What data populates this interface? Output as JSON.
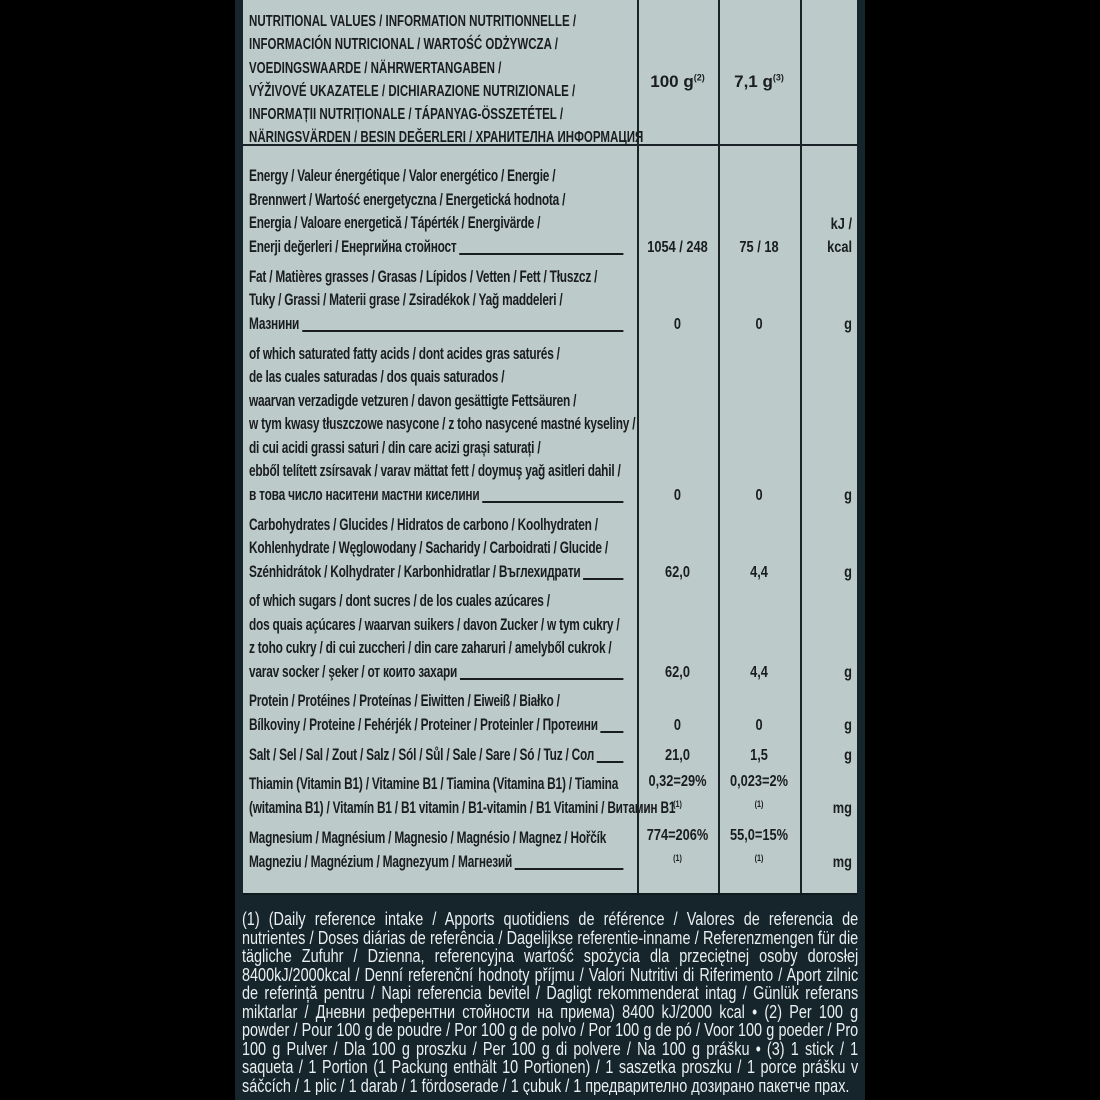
{
  "colors": {
    "table_bg": "#bccaca",
    "panel_bg": "#16252c",
    "page_bg": "#000000",
    "text_dark": "#1a1d1e",
    "text_light": "#e9eff1"
  },
  "header": {
    "title_lines": [
      "NUTRITIONAL VALUES / INFORMATION NUTRITIONNELLE /",
      "INFORMACIÓN NUTRICIONAL / WARTOŚĆ ODŻYWCZA /",
      "VOEDINGSWAARDE / NÄHRWERTANGABEN /",
      "VÝŽIVOVÉ UKAZATELE / DICHIARAZIONE NUTRIZIONALE /",
      "INFORMAȚII NUTRIȚIONALE / TÁPANYAG-ÖSSZETÉTEL /",
      "NÄRINGSVÄRDEN / BESIN DEĞERLERI / ХРАНИТЕЛНА ИНФОРМАЦИЯ"
    ],
    "col1": "100 g",
    "col1_note": "(2)",
    "col2": "7,1 g",
    "col2_note": "(3)"
  },
  "rows": [
    {
      "lines": [
        "Energy / Valeur énergétique / Valor energético / Energie /",
        "Brennwert / Wartość energetyczna / Energetická hodnota /",
        "Energia / Valoare energetică / Tápérték / Energivärde /",
        "Enerji değerleri / Енергийна стойност"
      ],
      "v1": "1054 / 248",
      "v2": "75 / 18",
      "unit": "kJ / kcal"
    },
    {
      "lines": [
        "Fat / Matières grasses / Grasas / Lípidos / Vetten / Fett / Tłuszcz /",
        "Tuky / Grassi / Materii grase / Zsiradékok / Yağ maddeleri /",
        "Мазнини"
      ],
      "v1": "0",
      "v2": "0",
      "unit": "g"
    },
    {
      "lines": [
        "of which saturated fatty acids / dont acides gras saturés /",
        "de las cuales saturadas / dos quais saturados /",
        "waarvan verzadigde vetzuren / davon gesättigte Fettsäuren /",
        "w tym kwasy tłuszczowe nasycone / z toho nasycené mastné kyseliny /",
        "di cui acidi grassi saturi / din care acizi grași saturați /",
        "ebből telített zsírsavak / varav mättat fett / doymuş yağ asitleri dahil /",
        "в това число наситени мастни киселини"
      ],
      "v1": "0",
      "v2": "0",
      "unit": "g"
    },
    {
      "lines": [
        "Carbohydrates / Glucides / Hidratos de carbono / Koolhydraten /",
        "Kohlenhydrate / Węglowodany / Sacharidy / Carboidrati / Glucide /",
        "Szénhidrátok / Kolhydrater / Karbonhidratlar / Въглехидрати"
      ],
      "v1": "62,0",
      "v2": "4,4",
      "unit": "g"
    },
    {
      "lines": [
        "of which sugars / dont sucres / de los cuales azúcares /",
        "dos quais açúcares / waarvan suikers / davon Zucker / w tym cukry /",
        "z toho cukry / di cui zuccheri / din care zaharuri / amelyből cukrok /",
        "varav socker / şeker / от които захари"
      ],
      "v1": "62,0",
      "v2": "4,4",
      "unit": "g"
    },
    {
      "lines": [
        "Protein / Protéines / Proteínas / Eiwitten / Eiweiß / Białko /",
        "Bílkoviny / Proteine / Fehérjék / Proteiner / Proteinler / Протеини"
      ],
      "v1": "0",
      "v2": "0",
      "unit": "g"
    },
    {
      "lines": [
        "Salt / Sel / Sal / Zout / Salz / Sól / Sůl / Sale / Sare / Só / Tuz / Сол"
      ],
      "v1": "21,0",
      "v2": "1,5",
      "unit": "g"
    },
    {
      "lines": [
        "Thiamin (Vitamin B1) / Vitamine B1 / Tiamina (Vitamina B1) / Tiamina",
        "(witamina B1) / Vitamín B1 / B1 vitamin / B1-vitamin / B1 Vitamini / Витамин B1"
      ],
      "v1": "0,32=29%",
      "v1_note": "(1)",
      "v2": "0,023=2%",
      "v2_note": "(1)",
      "unit": "mg",
      "no_leader": true
    },
    {
      "lines": [
        "Magnesium / Magnésium / Magnesio / Magnésio / Magnez / Hořčík",
        "Magneziu / Magnézium / Magnezyum / Магнезий"
      ],
      "v1": "774=206%",
      "v1_note": "(1)",
      "v2": "55,0=15%",
      "v2_note": "(1)",
      "unit": "mg"
    }
  ],
  "footnote": "(1) (Daily reference intake / Apports quotidiens de référence / Valores de referencia de nutrientes / Doses diárias de referência / Dagelijkse referentie-inname / Referenzmengen für die tägliche Zufuhr / Dzienna, referencyjna wartość spożycia dla przeciętnej osoby dorosłej 8400kJ/2000kcal / Denní referenční hodnoty příjmu / Valori Nutritivi di Riferimento / Aport zilnic de referință pentru / Napi referencia bevitel / Dagligt rekommenderat intag / Günlük referans miktarlar / Дневни референтни стойности на приема) 8400 kJ/2000 kcal • (2) Per 100 g powder / Pour 100 g de poudre / Por 100 g de polvo / Por 100 g de pó / Voor 100 g poeder / Pro 100 g Pulver / Dla 100 g proszku / Per 100 g di polvere / Na 100 g prášku • (3) 1 stick / 1 saqueta / 1 Portion (1 Packung enthält 10 Portionen) / 1 saszetka proszku / 1 porce prášku v sáčcích / 1 plic / 1 darab / 1 fördoserade / 1 çubuk / 1 предварително дозирано пакетче прах."
}
